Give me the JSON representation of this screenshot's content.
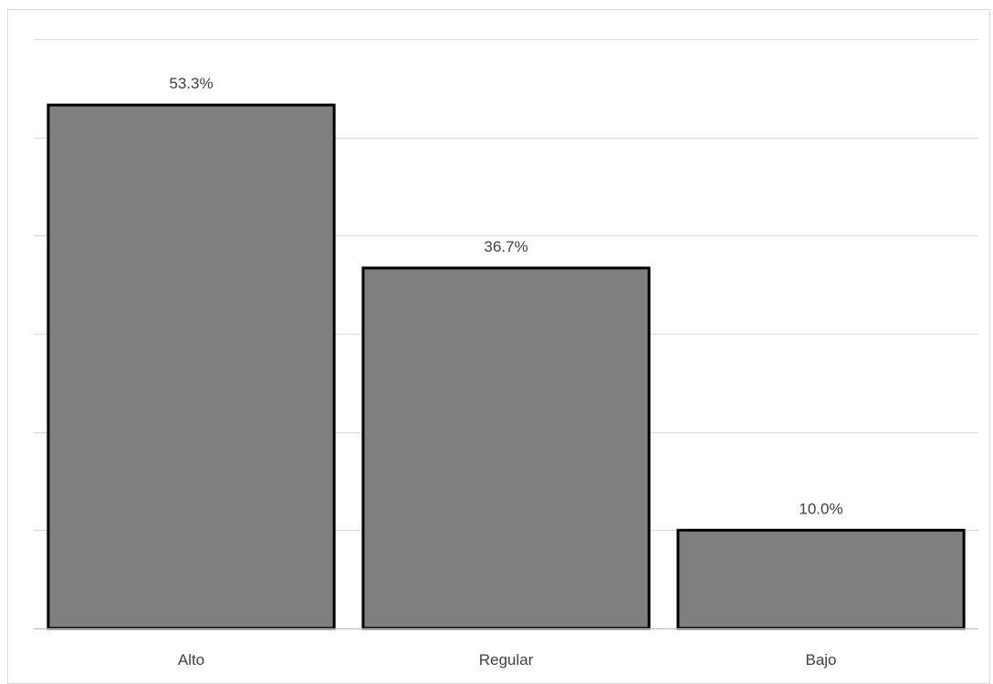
{
  "chart_data": {
    "type": "bar",
    "categories": [
      "Alto",
      "Regular",
      "Bajo"
    ],
    "values": [
      53.3,
      36.7,
      10.0
    ],
    "data_labels": [
      "53.3%",
      "36.7%",
      "10.0%"
    ],
    "title": "",
    "xlabel": "",
    "ylabel": "",
    "ylim": [
      0,
      60
    ],
    "grid": true,
    "legend": "none",
    "bar_color": "#7f7f7f",
    "bar_edge_color": "#000000"
  }
}
